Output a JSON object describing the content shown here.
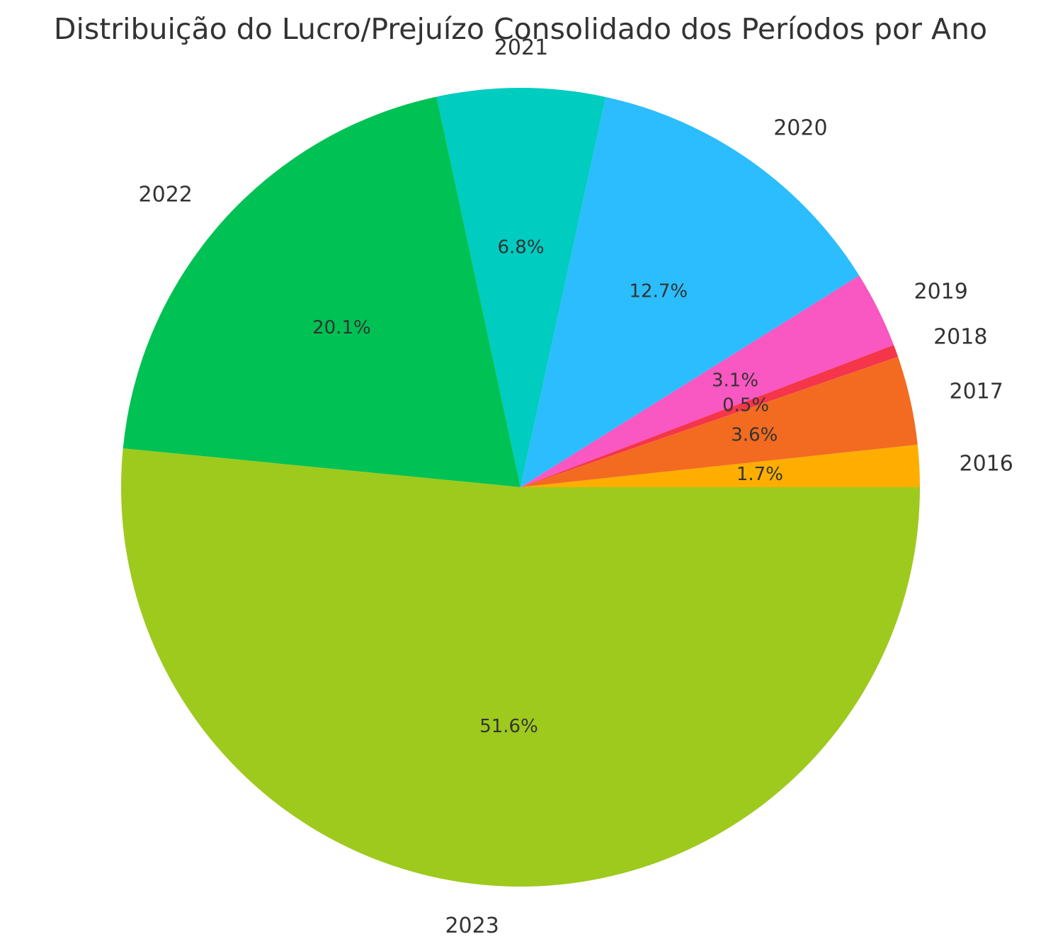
{
  "chart_data": {
    "type": "pie",
    "title": "Distribuição do Lucro/Prejuízo Consolidado dos Períodos por Ano",
    "categories": [
      "2016",
      "2017",
      "2018",
      "2019",
      "2020",
      "2021",
      "2022",
      "2023"
    ],
    "values": [
      1.7,
      3.6,
      0.5,
      3.1,
      12.7,
      6.8,
      20.1,
      51.6
    ],
    "value_labels": [
      "1.7%",
      "3.6%",
      "0.5%",
      "3.1%",
      "12.7%",
      "6.8%",
      "20.1%",
      "51.6%"
    ],
    "colors": [
      "#FFAE00",
      "#F26B21",
      "#F5354A",
      "#F957C1",
      "#2BBDFD",
      "#00CCC0",
      "#00C153",
      "#9DCA1C"
    ],
    "start_angle": 0,
    "direction": "counterclockwise"
  }
}
